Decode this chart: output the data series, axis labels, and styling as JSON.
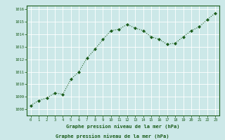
{
  "x": [
    0,
    1,
    2,
    3,
    4,
    5,
    6,
    7,
    8,
    9,
    10,
    11,
    12,
    13,
    14,
    15,
    16,
    17,
    18,
    19,
    20,
    21,
    22,
    23
  ],
  "y": [
    1008.3,
    1008.7,
    1008.9,
    1009.3,
    1009.2,
    1010.4,
    1011.0,
    1012.1,
    1012.8,
    1013.6,
    1014.3,
    1014.4,
    1014.8,
    1014.5,
    1014.3,
    1013.8,
    1013.6,
    1013.2,
    1013.3,
    1013.8,
    1014.3,
    1014.6,
    1015.2,
    1015.7
  ],
  "line_color": "#1a5c1a",
  "marker": "D",
  "marker_size": 2.0,
  "bg_color": "#cce8e8",
  "grid_color": "#ffffff",
  "ylabel_ticks": [
    1008,
    1009,
    1010,
    1011,
    1012,
    1013,
    1014,
    1015,
    1016
  ],
  "xlabel_ticks": [
    0,
    1,
    2,
    3,
    4,
    5,
    6,
    7,
    8,
    9,
    10,
    11,
    12,
    13,
    14,
    15,
    16,
    17,
    18,
    19,
    20,
    21,
    22,
    23
  ],
  "xlabel": "Graphe pression niveau de la mer (hPa)",
  "xlabel_color": "#1a5c1a",
  "tick_color": "#1a5c1a",
  "ylim": [
    1007.5,
    1016.3
  ],
  "xlim": [
    -0.5,
    23.5
  ],
  "figwidth": 3.2,
  "figheight": 2.0,
  "dpi": 100
}
